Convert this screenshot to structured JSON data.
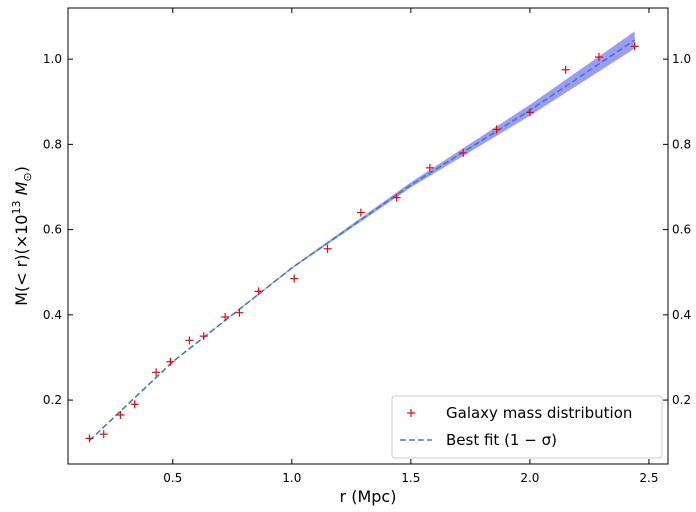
{
  "chart_data": {
    "type": "scatter",
    "xlabel": "r (Mpc)",
    "ylabel_parts": {
      "prefix": "M(< r)(×10",
      "exponent": "13",
      "symbol": "M",
      "subscript": "⊙",
      "suffix": ")"
    },
    "xlim": [
      0.06,
      2.58
    ],
    "ylim": [
      0.05,
      1.12
    ],
    "xticks": [
      0.5,
      1.0,
      1.5,
      2.0,
      2.5
    ],
    "xtick_labels": [
      "0.5",
      "1.0",
      "1.5",
      "2.0",
      "2.5"
    ],
    "yticks": [
      0.2,
      0.4,
      0.6,
      0.8,
      1.0
    ],
    "ytick_labels": [
      "0.2",
      "0.4",
      "0.6",
      "0.8",
      "1.0"
    ],
    "right_ytick_labels": [
      "0.2",
      "0.4",
      "0.6",
      "0.8",
      "1.0"
    ],
    "grid": false,
    "legend_position": "lower-right",
    "series": [
      {
        "name": "Galaxy mass distribution",
        "kind": "points",
        "marker": "+",
        "color": "#ff0000",
        "x": [
          0.15,
          0.21,
          0.28,
          0.34,
          0.43,
          0.49,
          0.57,
          0.63,
          0.72,
          0.78,
          0.86,
          1.01,
          1.15,
          1.29,
          1.44,
          1.58,
          1.72,
          1.86,
          2.0,
          2.15,
          2.29,
          2.44
        ],
        "y": [
          0.11,
          0.12,
          0.165,
          0.19,
          0.265,
          0.29,
          0.34,
          0.35,
          0.395,
          0.405,
          0.455,
          0.485,
          0.555,
          0.64,
          0.675,
          0.745,
          0.78,
          0.835,
          0.875,
          0.975,
          1.005,
          1.03
        ]
      },
      {
        "name": "Best fit (1 − σ)",
        "kind": "dashed-line",
        "color": "#3a7fc0",
        "band_color": "#7b7bf2",
        "x": [
          0.15,
          0.5,
          1.0,
          1.5,
          2.0,
          2.44
        ],
        "y": [
          0.105,
          0.29,
          0.51,
          0.705,
          0.88,
          1.045
        ],
        "band_half_width": [
          0.0,
          0.0,
          0.002,
          0.006,
          0.013,
          0.02
        ]
      }
    ]
  }
}
